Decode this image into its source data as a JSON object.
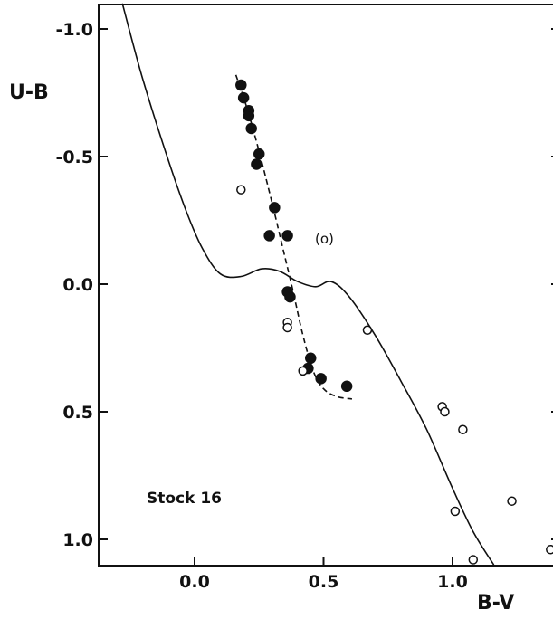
{
  "chart_data": {
    "type": "scatter",
    "title": "",
    "xlabel": "B-V",
    "ylabel": "U-B",
    "xlim": [
      -0.37,
      1.4
    ],
    "ylim": [
      1.1,
      -1.1
    ],
    "y_inverted": true,
    "grid": false,
    "x_ticks": [
      "0.0",
      "0.5",
      "1.0"
    ],
    "y_ticks": [
      "-1.0",
      "-0.5",
      "0.0",
      "0.5",
      "1.0"
    ],
    "annotation": "Stock 16",
    "bracketed_point_label": "(o)",
    "series": [
      {
        "marker": "filled-circle",
        "x": [
          0.18,
          0.19,
          0.21,
          0.21,
          0.22,
          0.25,
          0.24,
          0.31,
          0.36,
          0.29,
          0.36,
          0.37,
          0.45,
          0.44,
          0.49,
          0.59
        ],
        "y": [
          -0.78,
          -0.73,
          -0.68,
          -0.66,
          -0.61,
          -0.51,
          -0.47,
          -0.3,
          -0.19,
          -0.19,
          0.03,
          0.05,
          0.29,
          0.33,
          0.37,
          0.4
        ]
      },
      {
        "marker": "open-circle",
        "x": [
          0.18,
          0.36,
          0.36,
          0.42,
          0.67,
          0.96,
          0.97,
          1.04,
          1.01,
          1.23,
          1.08,
          1.38
        ],
        "y": [
          -0.37,
          0.15,
          0.17,
          0.34,
          0.18,
          0.48,
          0.5,
          0.57,
          0.89,
          0.85,
          1.08,
          1.04
        ]
      },
      {
        "marker": "bracketed-open-circle",
        "x": [
          0.52
        ],
        "y": [
          -0.18
        ]
      },
      {
        "line": "solid",
        "x": [
          -0.28,
          -0.2,
          -0.1,
          -0.03,
          0.03,
          0.1,
          0.18,
          0.26,
          0.33,
          0.4,
          0.47,
          0.53,
          0.6,
          0.7,
          0.8,
          0.9,
          1.0,
          1.08,
          1.16
        ],
        "y": [
          -1.1,
          -0.8,
          -0.48,
          -0.28,
          -0.14,
          -0.04,
          -0.03,
          -0.06,
          -0.05,
          -0.01,
          0.01,
          -0.01,
          0.05,
          0.2,
          0.38,
          0.57,
          0.8,
          0.97,
          1.1
        ]
      },
      {
        "line": "dashed",
        "x": [
          0.16,
          0.2,
          0.25,
          0.3,
          0.34,
          0.38,
          0.42,
          0.46,
          0.5,
          0.55,
          0.61
        ],
        "y": [
          -0.82,
          -0.7,
          -0.52,
          -0.32,
          -0.15,
          0.02,
          0.2,
          0.34,
          0.41,
          0.44,
          0.45
        ]
      }
    ]
  }
}
